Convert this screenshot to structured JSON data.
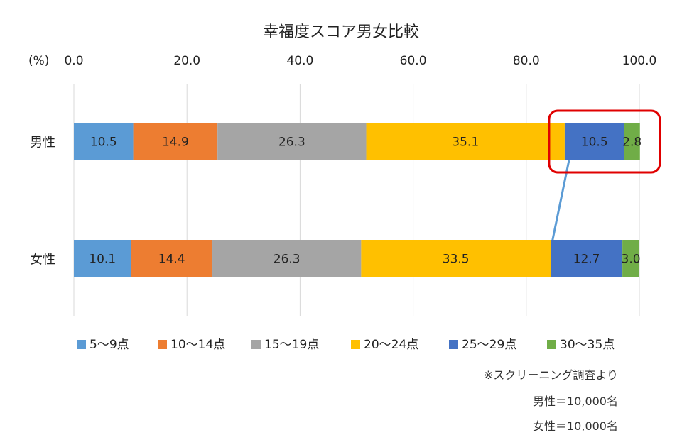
{
  "chart_data": {
    "type": "bar",
    "orientation": "horizontal",
    "stacked": true,
    "title": "幸福度スコア男女比較",
    "unit_label": "(%)",
    "xlim": [
      0,
      100
    ],
    "ticks": [
      "0.0",
      "20.0",
      "40.0",
      "60.0",
      "80.0",
      "100.0"
    ],
    "grid": true,
    "legend_position": "bottom",
    "categories": [
      "男性",
      "女性"
    ],
    "series": [
      {
        "name": "5〜9点",
        "color": "#5b9bd5",
        "values": [
          10.5,
          10.1
        ],
        "labels": [
          "10.5",
          "10.1"
        ]
      },
      {
        "name": "10〜14点",
        "color": "#ed7d31",
        "values": [
          14.9,
          14.4
        ],
        "labels": [
          "14.9",
          "14.4"
        ]
      },
      {
        "name": "15〜19点",
        "color": "#a5a5a5",
        "values": [
          26.3,
          26.3
        ],
        "labels": [
          "26.3",
          "26.3"
        ]
      },
      {
        "name": "20〜24点",
        "color": "#ffc000",
        "values": [
          35.1,
          33.5
        ],
        "labels": [
          "35.1",
          "33.5"
        ]
      },
      {
        "name": "25〜29点",
        "color": "#4472c4",
        "values": [
          10.5,
          12.7
        ],
        "labels": [
          "10.5",
          "12.7"
        ]
      },
      {
        "name": "30〜35点",
        "color": "#70ad47",
        "values": [
          2.8,
          3.0
        ],
        "labels": [
          "2.8",
          "3.0"
        ]
      }
    ],
    "highlight": {
      "category": "男性",
      "series": [
        "25〜29点",
        "30〜35点"
      ],
      "color": "#e00000"
    },
    "connector_color": "#5b9bd5"
  },
  "notes": {
    "line1": "※スクリーニング調査より",
    "line2": "男性＝10,000名",
    "line3": "女性＝10,000名"
  }
}
